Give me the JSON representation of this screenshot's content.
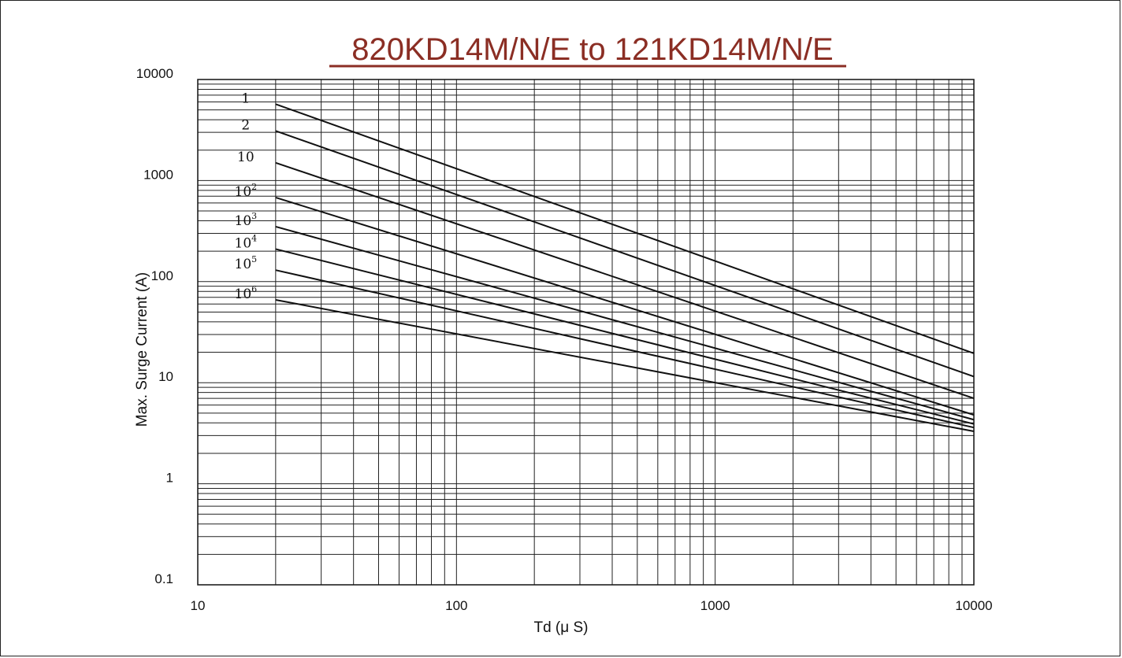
{
  "chart_data": {
    "type": "line",
    "title": "820KD14M/N/E to 121KD14M/N/E",
    "xlabel": "Td (μ S)",
    "ylabel": "Max. Surge Current (A)",
    "x_scale": "log",
    "y_scale": "log",
    "xlim": [
      10,
      10000
    ],
    "ylim": [
      0.1,
      10000
    ],
    "x_ticks": [
      "10",
      "100",
      "1000",
      "10000"
    ],
    "y_ticks": [
      "10000",
      "1000",
      "100",
      "10",
      "1",
      "0.1"
    ],
    "grid": true,
    "series": [
      {
        "name": "1",
        "label_base": "1",
        "label_exp": "",
        "x": [
          20,
          10000
        ],
        "y": [
          5700,
          19.5
        ]
      },
      {
        "name": "2",
        "label_base": "2",
        "label_exp": "",
        "x": [
          20,
          10000
        ],
        "y": [
          3100,
          11.5
        ]
      },
      {
        "name": "10",
        "label_base": "10",
        "label_exp": "",
        "x": [
          20,
          10000
        ],
        "y": [
          1500,
          7.0
        ]
      },
      {
        "name": "10^2",
        "label_base": "10",
        "label_exp": "2",
        "x": [
          20,
          10000
        ],
        "y": [
          680,
          4.8
        ]
      },
      {
        "name": "10^3",
        "label_base": "10",
        "label_exp": "3",
        "x": [
          20,
          10000
        ],
        "y": [
          350,
          4.3
        ]
      },
      {
        "name": "10^4",
        "label_base": "10",
        "label_exp": "4",
        "x": [
          20,
          10000
        ],
        "y": [
          210,
          3.9
        ]
      },
      {
        "name": "10^5",
        "label_base": "10",
        "label_exp": "5",
        "x": [
          20,
          10000
        ],
        "y": [
          130,
          3.6
        ]
      },
      {
        "name": "10^6",
        "label_base": "10",
        "label_exp": "6",
        "x": [
          20,
          10000
        ],
        "y": [
          66,
          3.3
        ]
      }
    ]
  }
}
